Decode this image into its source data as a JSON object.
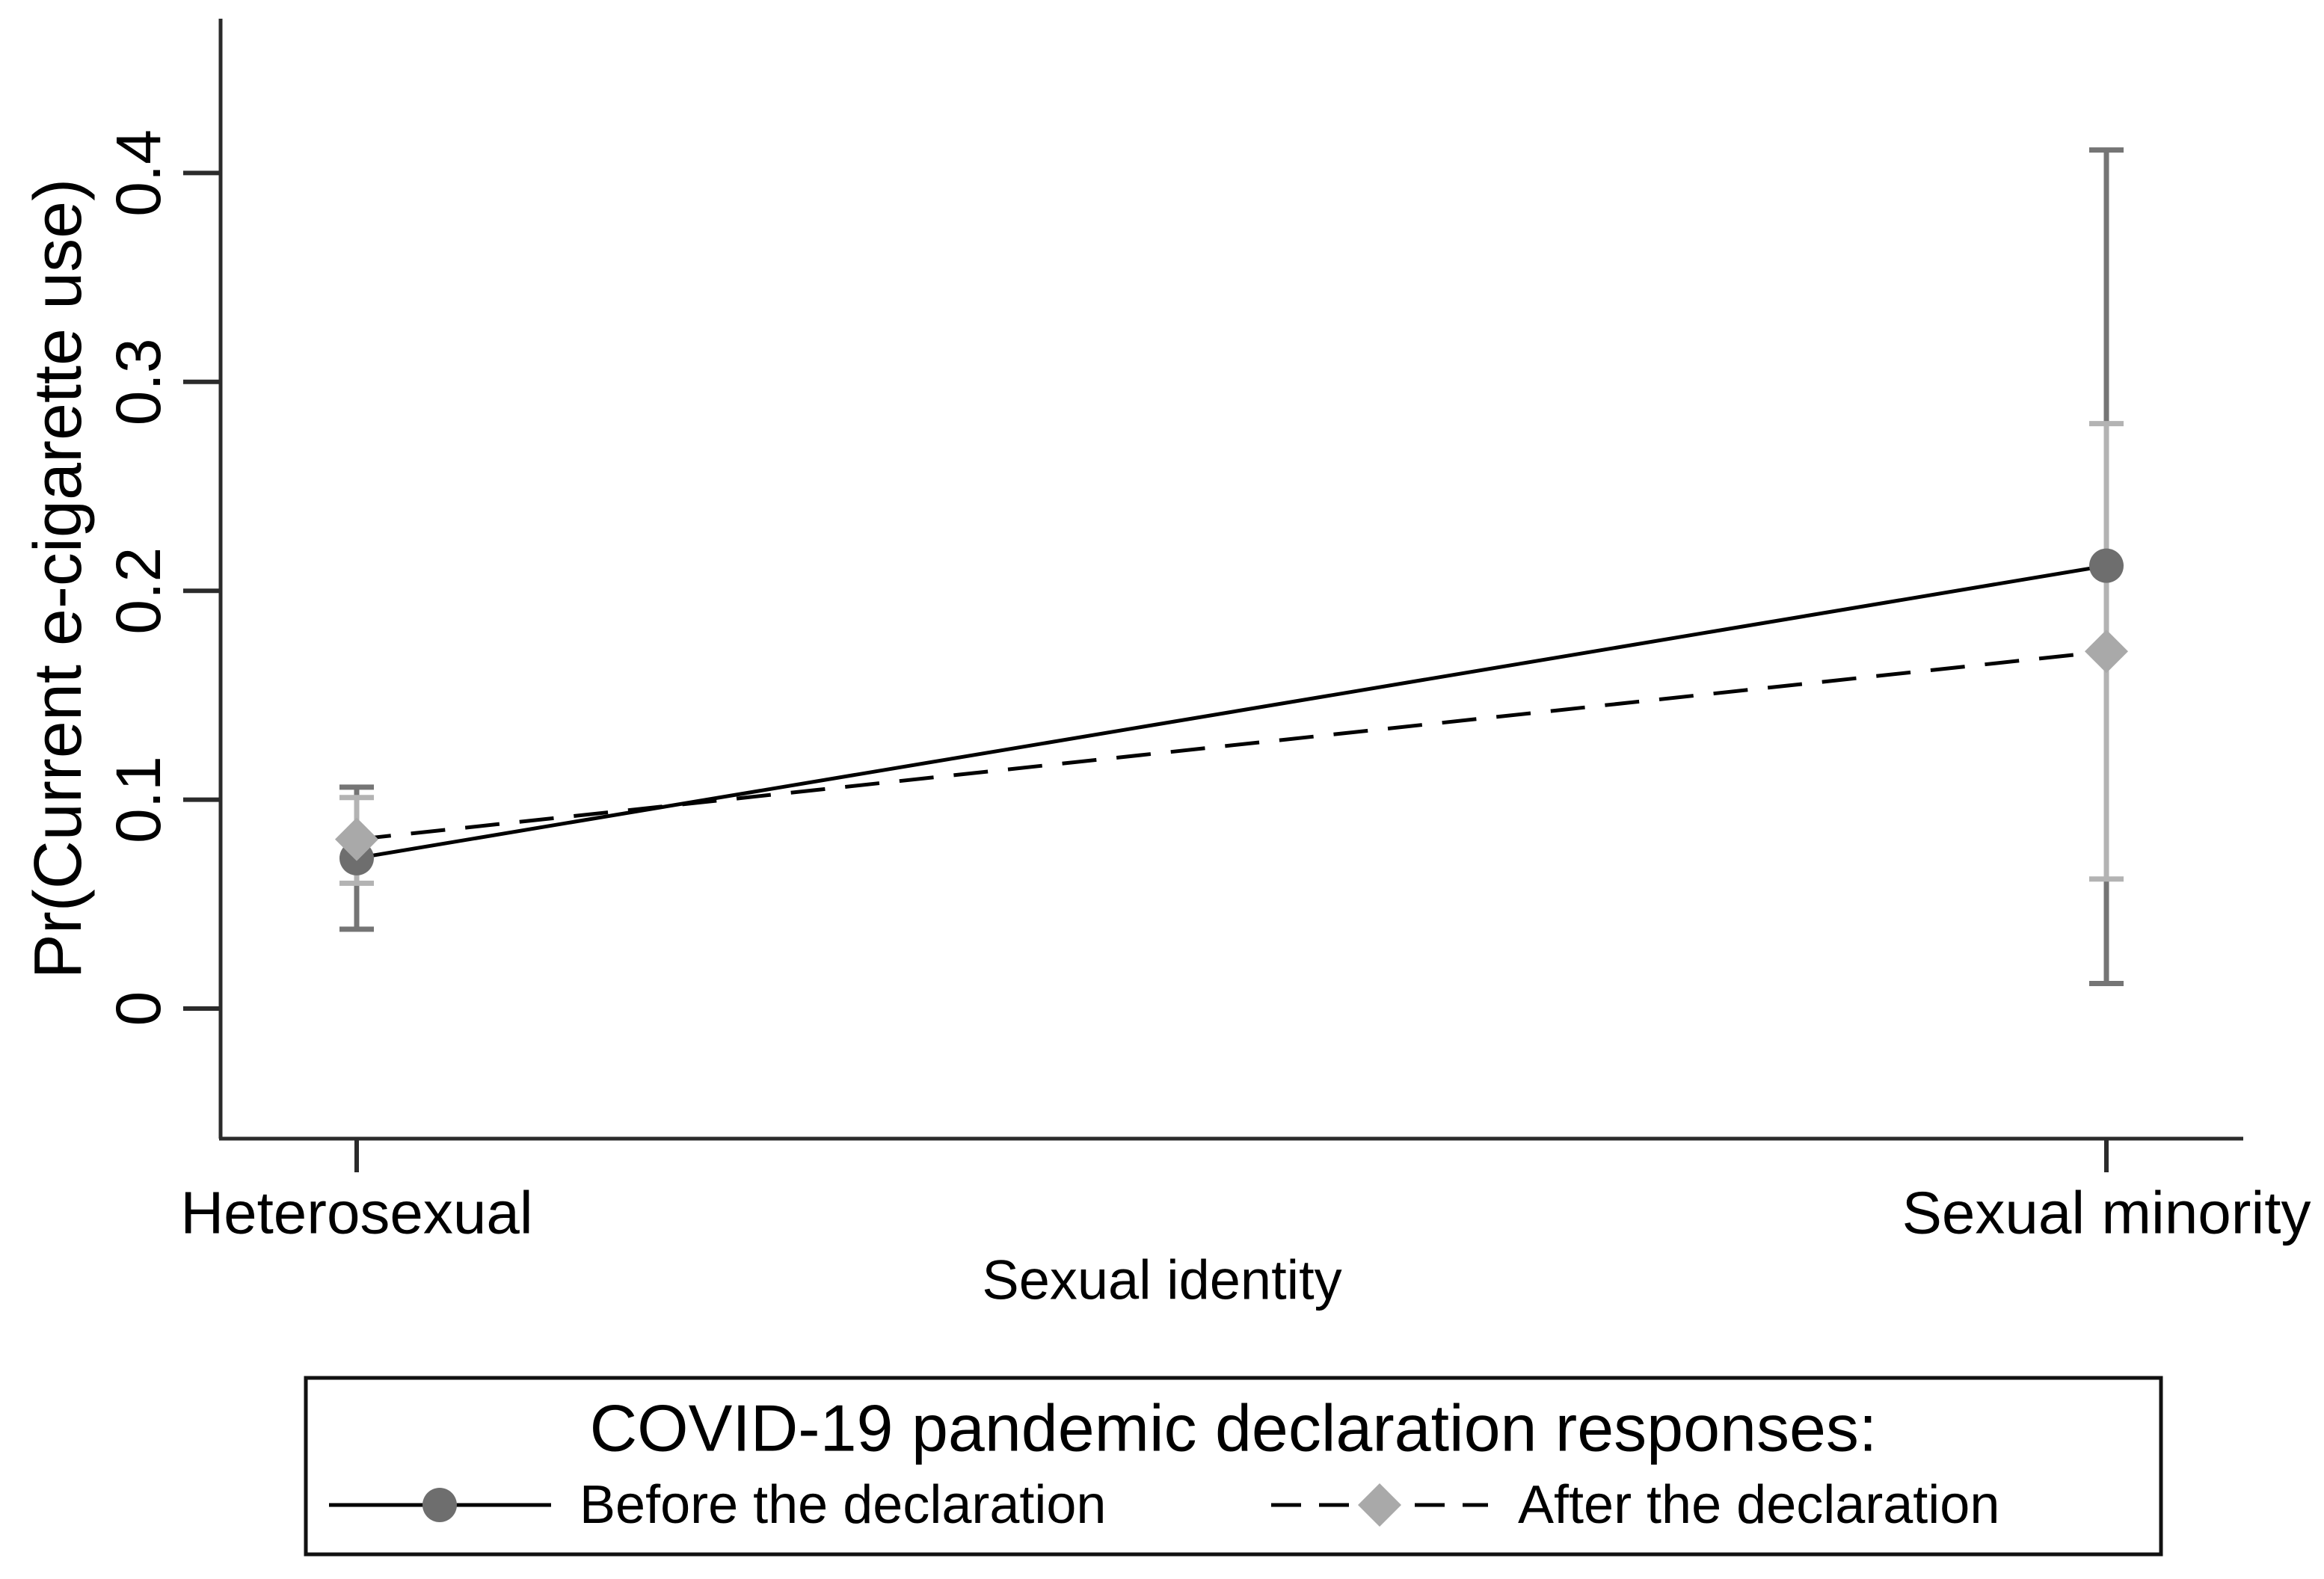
{
  "figure": {
    "background": "#ffffff",
    "axis_color": "#2b2b2b",
    "text_color": "#000000"
  },
  "chart_data": {
    "type": "line",
    "subtype": "point-estimates-with-95ci-error-bars",
    "title": "",
    "xlabel": "Sexual identity",
    "ylabel": "Pr(Current e-cigarette use)",
    "categories": [
      "Heterosexual",
      "Sexual minority"
    ],
    "y_ticks": [
      0,
      0.1,
      0.2,
      0.3,
      0.4
    ],
    "y_tick_labels": [
      "0",
      "0.1",
      "0.2",
      "0.3",
      "0.4"
    ],
    "ylim": [
      -0.06,
      0.47
    ],
    "grid": false,
    "legend_position": "bottom",
    "series": [
      {
        "name": "Before the declaration",
        "line_style": "solid",
        "line_color": "#000000",
        "marker": "circle",
        "marker_color": "#6e6e6e",
        "error_color": "#757575",
        "values": [
          0.072,
          0.212
        ],
        "ci_low": [
          0.038,
          0.012
        ],
        "ci_high": [
          0.106,
          0.411
        ]
      },
      {
        "name": "After the declaration",
        "line_style": "dashed",
        "line_color": "#000000",
        "marker": "diamond",
        "marker_color": "#a9a9a9",
        "error_color": "#b3b3b3",
        "values": [
          0.081,
          0.171
        ],
        "ci_low": [
          0.06,
          0.062
        ],
        "ci_high": [
          0.101,
          0.28
        ]
      }
    ],
    "legend": {
      "title": "COVID-19 pandemic declaration responses:",
      "entries": [
        "Before the declaration",
        "After the declaration"
      ],
      "border": true
    }
  }
}
